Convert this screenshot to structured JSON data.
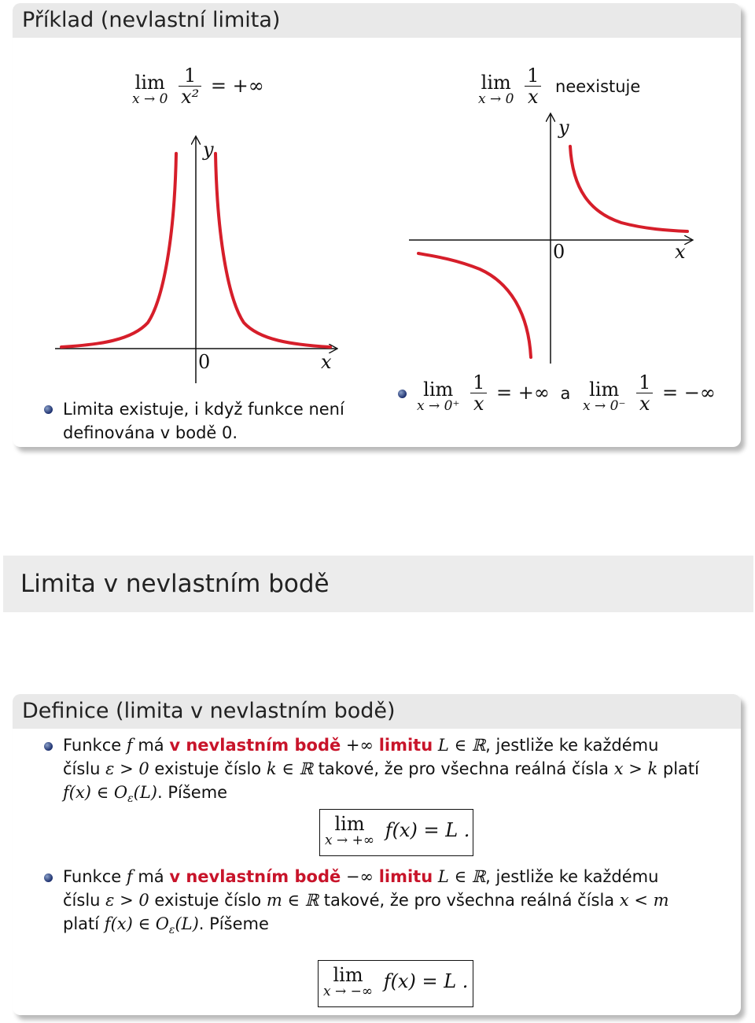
{
  "example": {
    "title": "Příklad (nevlastní limita)",
    "left_formula": {
      "lim": "lim",
      "sub": "x → 0",
      "num": "1",
      "den": "x²",
      "rhs": "= +∞"
    },
    "right_formula": {
      "lim": "lim",
      "sub": "x → 0",
      "num": "1",
      "den": "x",
      "rhs": "neexistuje"
    },
    "left_graph": {
      "y_label": "y",
      "x_label": "x",
      "origin": "0"
    },
    "right_graph": {
      "y_label": "y",
      "x_label": "x",
      "origin": "0"
    },
    "left_bullet": "Limita existuje, i když funkce není definována v bodě 0.",
    "right_bullet": {
      "lim1": "lim",
      "sub1": "x → 0⁺",
      "num1": "1",
      "den1": "x",
      "rhs1": "= +∞",
      "conj": "a",
      "lim2": "lim",
      "sub2": "x → 0⁻",
      "num2": "1",
      "den2": "x",
      "rhs2": "= −∞"
    },
    "curve_color": "#d61e2a"
  },
  "section": {
    "title": "Limita v nevlastním bodě"
  },
  "definition": {
    "title": "Definice (limita v nevlastním bodě)",
    "item1": {
      "pre": "Funkce",
      "f": "f",
      "ma": "má",
      "red1": "v nevlastním bodě",
      "point": "+∞",
      "red2": "limitu",
      "LinR": "L ∈ ℝ",
      "cont1": ", jestliže ke každému",
      "line2a": "číslu",
      "eps": "ε > 0",
      "line2b": "existuje číslo",
      "kinR": "k ∈ ℝ",
      "line2c": "takové, že pro všechna reálná čísla",
      "xk": "x > k",
      "line2d": "platí",
      "fx": "f(x) ∈ O",
      "epssub": "ε",
      "L": "(L)",
      "pis": ". Píšeme",
      "box": {
        "lim": "lim",
        "sub": "x → +∞",
        "expr": "f(x) = L ."
      }
    },
    "item2": {
      "pre": "Funkce",
      "f": "f",
      "ma": "má",
      "red1": "v nevlastním bodě",
      "point": "−∞",
      "red2": "limitu",
      "LinR": "L ∈ ℝ",
      "cont1": ", jestliže ke každému",
      "line2a": "číslu",
      "eps": "ε > 0",
      "line2b": "existuje číslo",
      "minR": "m ∈ ℝ",
      "line2c": "takové, že pro všechna reálná čísla",
      "xm": "x < m",
      "line3a": "platí",
      "fx": "f(x) ∈ O",
      "epssub": "ε",
      "L": "(L)",
      "pis": ". Píšeme",
      "box": {
        "lim": "lim",
        "sub": "x → −∞",
        "expr": "f(x) = L ."
      }
    },
    "accent_color": "#c8142a"
  }
}
